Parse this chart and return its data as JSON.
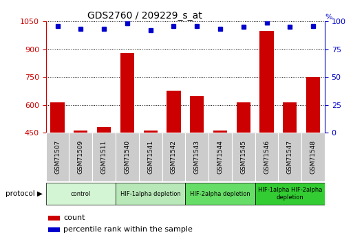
{
  "title": "GDS2760 / 209229_s_at",
  "samples": [
    "GSM71507",
    "GSM71509",
    "GSM71511",
    "GSM71540",
    "GSM71541",
    "GSM71542",
    "GSM71543",
    "GSM71544",
    "GSM71545",
    "GSM71546",
    "GSM71547",
    "GSM71548"
  ],
  "counts": [
    615,
    463,
    480,
    880,
    463,
    675,
    648,
    460,
    615,
    1000,
    615,
    750
  ],
  "percentile_ranks": [
    96,
    93,
    93,
    98,
    92,
    96,
    96,
    93,
    95,
    99,
    95,
    96
  ],
  "ylim_left": [
    450,
    1050
  ],
  "ylim_right": [
    0,
    100
  ],
  "yticks_left": [
    450,
    600,
    750,
    900,
    1050
  ],
  "yticks_right": [
    0,
    25,
    50,
    75,
    100
  ],
  "bar_color": "#cc0000",
  "dot_color": "#0000cc",
  "bar_width": 0.6,
  "groups": [
    {
      "label": "control",
      "start": 0,
      "end": 3,
      "color": "#d4f5d4"
    },
    {
      "label": "HIF-1alpha depletion",
      "start": 3,
      "end": 6,
      "color": "#b8e8b8"
    },
    {
      "label": "HIF-2alpha depletion",
      "start": 6,
      "end": 9,
      "color": "#66dd66"
    },
    {
      "label": "HIF-1alpha HIF-2alpha\ndepletion",
      "start": 9,
      "end": 12,
      "color": "#33cc33"
    }
  ],
  "protocol_label": "protocol",
  "legend_count_label": "count",
  "legend_percentile_label": "percentile rank within the sample",
  "axis_left_color": "#cc0000",
  "axis_right_color": "#0000cc",
  "tick_label_bg": "#cccccc",
  "pct_marker_size": 5
}
